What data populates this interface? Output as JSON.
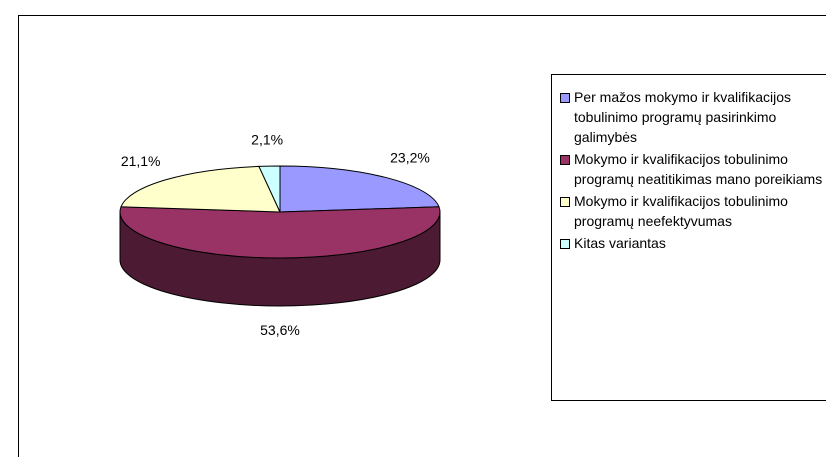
{
  "chart_data": {
    "type": "pie",
    "categories": [
      "Per mažos mokymo ir kvalifikacijos tobulinimo programų pasirinkimo galimybės",
      "Mokymo ir kvalifikacijos tobulinimo programų neatitikimas mano poreikiams",
      "Mokymo ir kvalifikacijos tobulinimo programų neefektyvumas",
      "Kitas variantas"
    ],
    "values": [
      23.2,
      53.6,
      21.1,
      2.1
    ],
    "value_labels": [
      "23,2%",
      "53,6%",
      "21,1%",
      "2,1%"
    ],
    "colors": [
      "#9999ff",
      "#993366",
      "#ffffcc",
      "#ccffff"
    ],
    "legend": "right"
  }
}
